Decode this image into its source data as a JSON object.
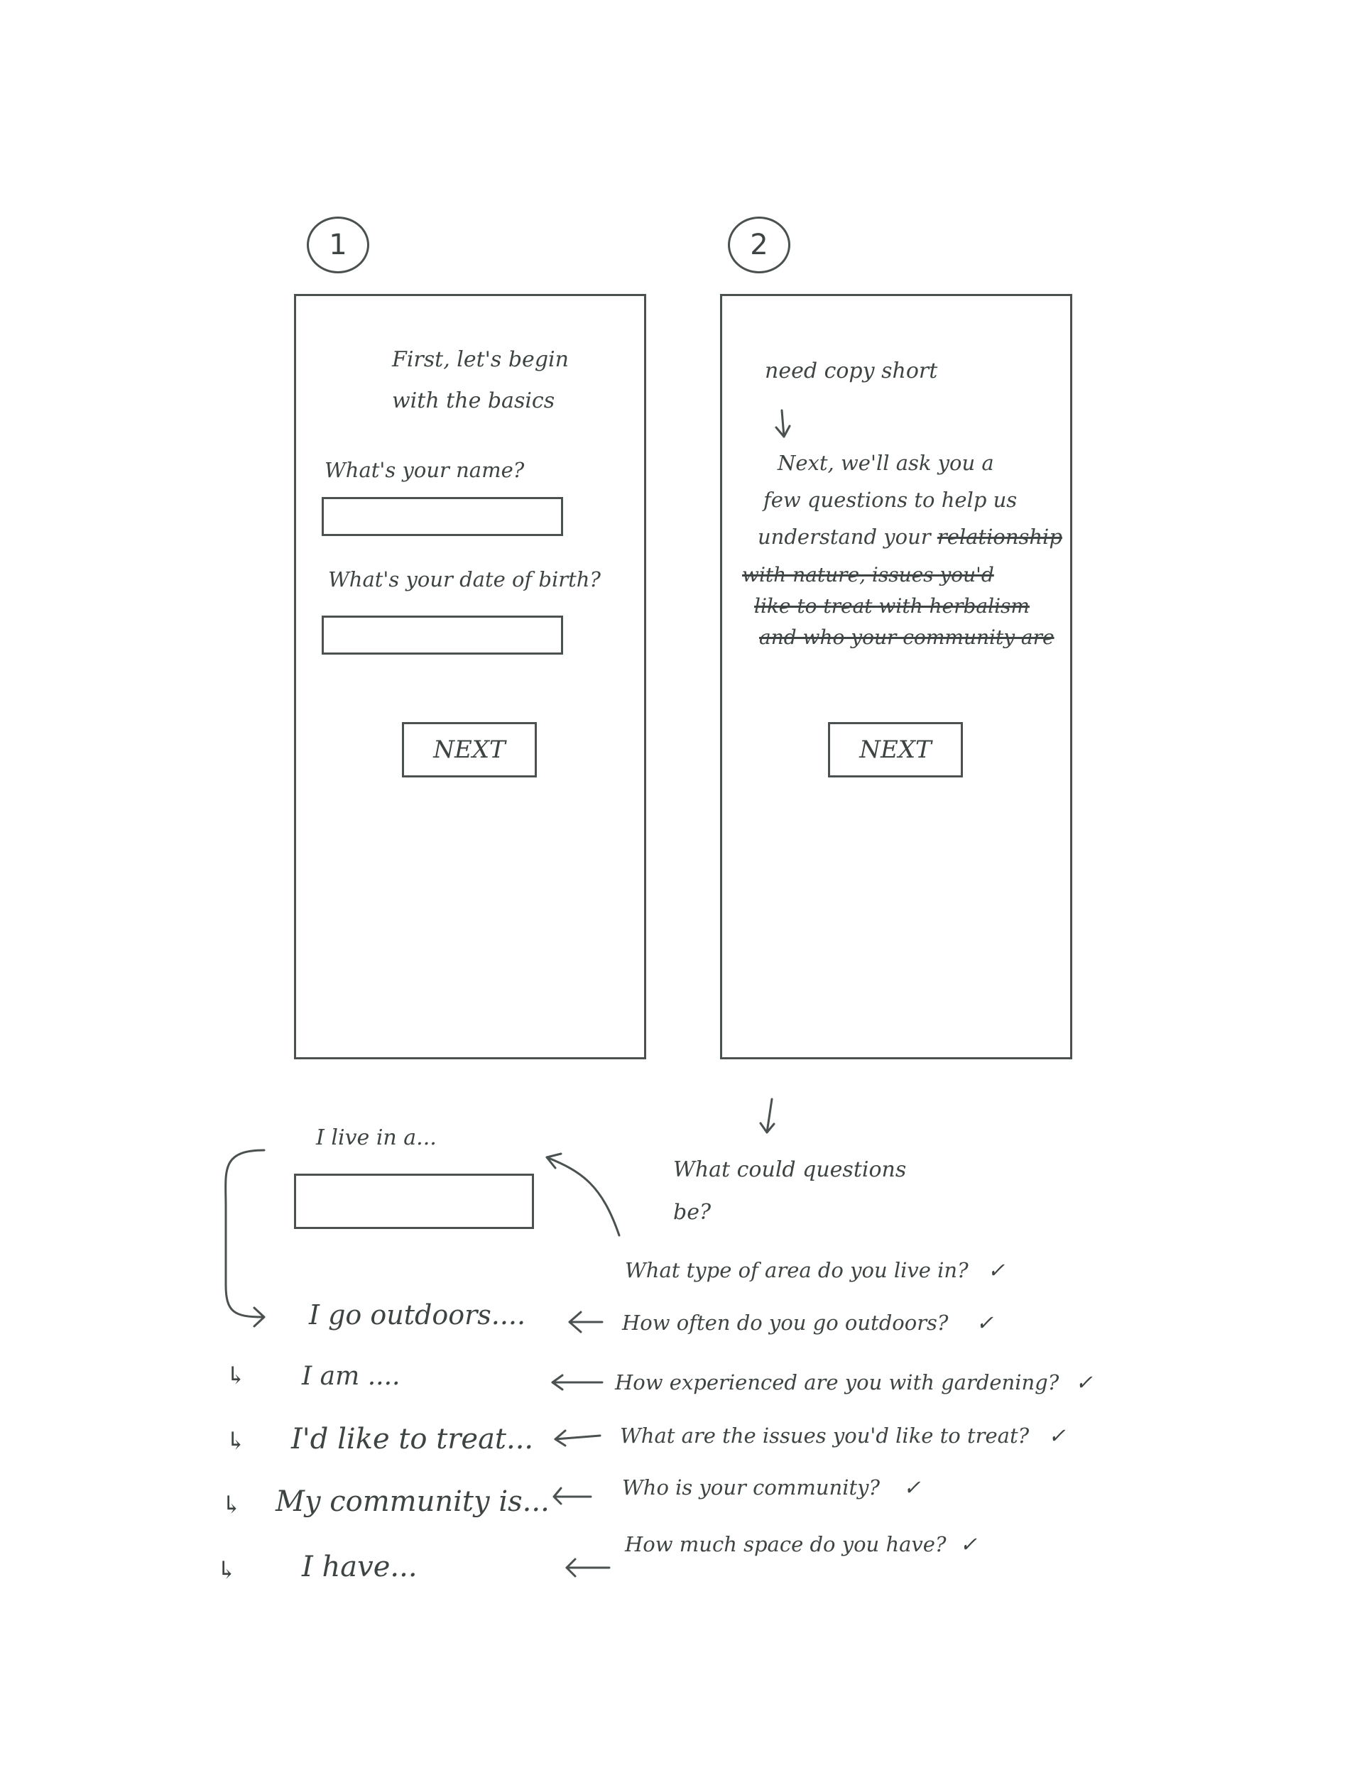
{
  "screen1": {
    "step": "1",
    "heading_line1": "First, let's begin",
    "heading_line2": "with the basics",
    "name_label": "What's your name?",
    "dob_label": "What's your date of birth?",
    "next_label": "NEXT"
  },
  "screen2": {
    "step": "2",
    "note": "need copy short",
    "body_line1": "Next, we'll ask you a",
    "body_line2": "few questions to help us",
    "body_line3a": "understand your",
    "body_line3b": "relationship",
    "body_line4": "with nature, issues you'd",
    "body_line5": "like to treat with herbalism",
    "body_line6": "and who your community are",
    "next_label": "NEXT"
  },
  "below": {
    "live_label": "I live in a...",
    "question_prompt_line1": "What could questions",
    "question_prompt_line2": "be?",
    "statements": [
      "I go outdoors....",
      "I am ....",
      "I'd like to treat...",
      "My community is...",
      "I have..."
    ],
    "questions": [
      "What type of area do you live in?",
      "How often do you go outdoors?",
      "How experienced are you with gardening?",
      "What are the issues you'd like to treat?",
      "Who is your community?",
      "How much space do you have?"
    ],
    "check": "✓"
  }
}
